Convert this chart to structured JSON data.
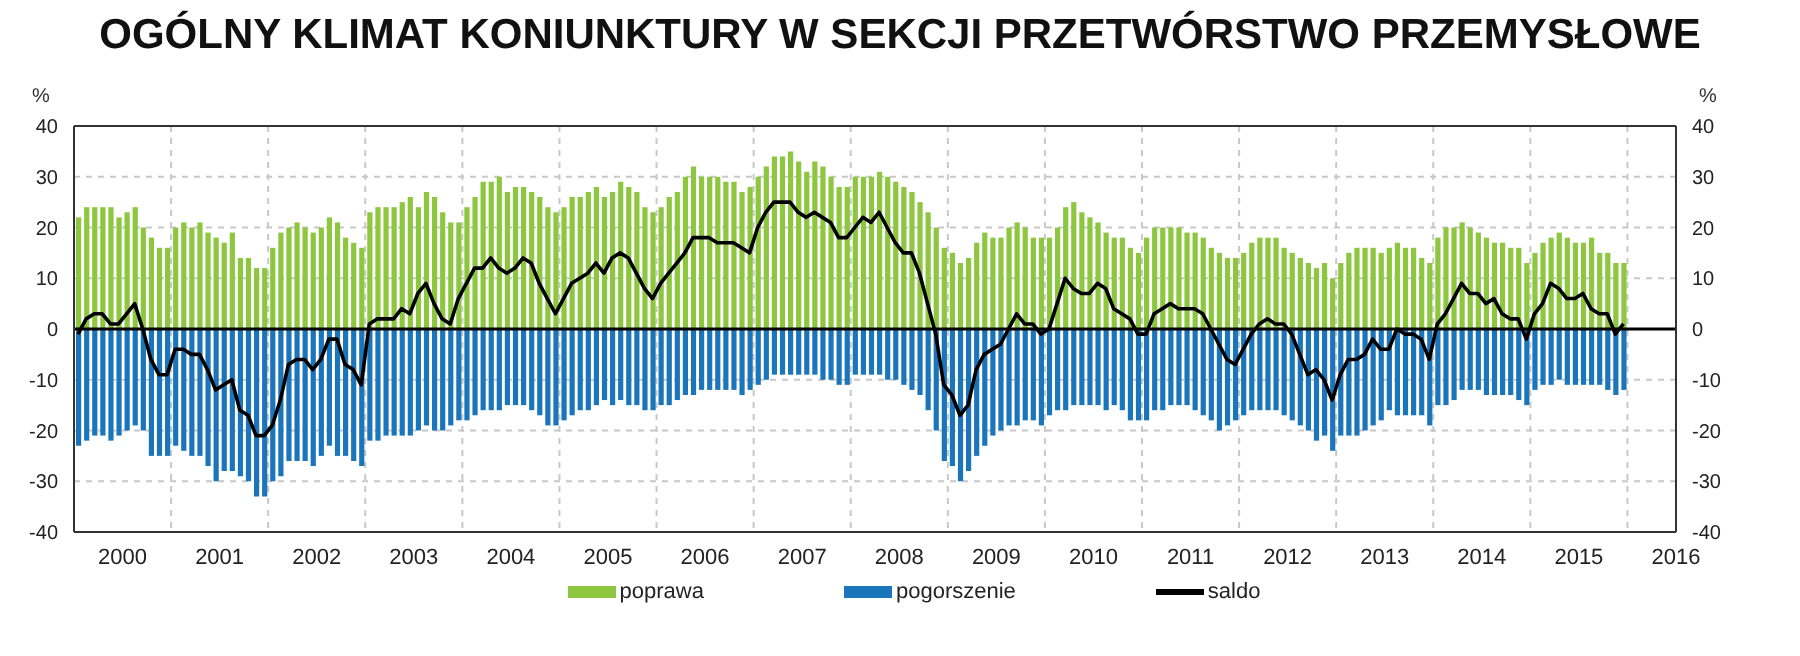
{
  "chart_data": {
    "type": "bar",
    "title": "OGÓLNY KLIMAT KONIUNKTURY W SEKCJI PRZETWÓRSTWO PRZEMYSŁOWE",
    "ylabel": "%",
    "y2label": "%",
    "x": [
      "2000-01",
      "2000-02",
      "2000-03",
      "2000-04",
      "2000-05",
      "2000-06",
      "2000-07",
      "2000-08",
      "2000-09",
      "2000-10",
      "2000-11",
      "2000-12",
      "2001-01",
      "2001-02",
      "2001-03",
      "2001-04",
      "2001-05",
      "2001-06",
      "2001-07",
      "2001-08",
      "2001-09",
      "2001-10",
      "2001-11",
      "2001-12",
      "2002-01",
      "2002-02",
      "2002-03",
      "2002-04",
      "2002-05",
      "2002-06",
      "2002-07",
      "2002-08",
      "2002-09",
      "2002-10",
      "2002-11",
      "2002-12",
      "2003-01",
      "2003-02",
      "2003-03",
      "2003-04",
      "2003-05",
      "2003-06",
      "2003-07",
      "2003-08",
      "2003-09",
      "2003-10",
      "2003-11",
      "2003-12",
      "2004-01",
      "2004-02",
      "2004-03",
      "2004-04",
      "2004-05",
      "2004-06",
      "2004-07",
      "2004-08",
      "2004-09",
      "2004-10",
      "2004-11",
      "2004-12",
      "2005-01",
      "2005-02",
      "2005-03",
      "2005-04",
      "2005-05",
      "2005-06",
      "2005-07",
      "2005-08",
      "2005-09",
      "2005-10",
      "2005-11",
      "2005-12",
      "2006-01",
      "2006-02",
      "2006-03",
      "2006-04",
      "2006-05",
      "2006-06",
      "2006-07",
      "2006-08",
      "2006-09",
      "2006-10",
      "2006-11",
      "2006-12",
      "2007-01",
      "2007-02",
      "2007-03",
      "2007-04",
      "2007-05",
      "2007-06",
      "2007-07",
      "2007-08",
      "2007-09",
      "2007-10",
      "2007-11",
      "2007-12",
      "2008-01",
      "2008-02",
      "2008-03",
      "2008-04",
      "2008-05",
      "2008-06",
      "2008-07",
      "2008-08",
      "2008-09",
      "2008-10",
      "2008-11",
      "2008-12",
      "2009-01",
      "2009-02",
      "2009-03",
      "2009-04",
      "2009-05",
      "2009-06",
      "2009-07",
      "2009-08",
      "2009-09",
      "2009-10",
      "2009-11",
      "2009-12",
      "2010-01",
      "2010-02",
      "2010-03",
      "2010-04",
      "2010-05",
      "2010-06",
      "2010-07",
      "2010-08",
      "2010-09",
      "2010-10",
      "2010-11",
      "2010-12",
      "2011-01",
      "2011-02",
      "2011-03",
      "2011-04",
      "2011-05",
      "2011-06",
      "2011-07",
      "2011-08",
      "2011-09",
      "2011-10",
      "2011-11",
      "2011-12",
      "2012-01",
      "2012-02",
      "2012-03",
      "2012-04",
      "2012-05",
      "2012-06",
      "2012-07",
      "2012-08",
      "2012-09",
      "2012-10",
      "2012-11",
      "2012-12",
      "2013-01",
      "2013-02",
      "2013-03",
      "2013-04",
      "2013-05",
      "2013-06",
      "2013-07",
      "2013-08",
      "2013-09",
      "2013-10",
      "2013-11",
      "2013-12",
      "2014-01",
      "2014-02",
      "2014-03",
      "2014-04",
      "2014-05",
      "2014-06",
      "2014-07",
      "2014-08",
      "2014-09",
      "2014-10",
      "2014-11",
      "2014-12",
      "2015-01",
      "2015-02",
      "2015-03",
      "2015-04",
      "2015-05",
      "2015-06",
      "2015-07",
      "2015-08",
      "2015-09",
      "2015-10",
      "2015-11",
      "2015-12"
    ],
    "series": [
      {
        "name": "poprawa",
        "color": "#8dc63f",
        "values": [
          22,
          24,
          24,
          24,
          24,
          22,
          23,
          24,
          20,
          18,
          16,
          16,
          20,
          21,
          20,
          21,
          19,
          18,
          17,
          19,
          14,
          14,
          12,
          12,
          16,
          19,
          20,
          21,
          20,
          19,
          20,
          22,
          21,
          18,
          17,
          16,
          23,
          24,
          24,
          24,
          25,
          26,
          24,
          27,
          26,
          23,
          21,
          21,
          24,
          26,
          29,
          29,
          30,
          27,
          28,
          28,
          27,
          26,
          24,
          23,
          24,
          26,
          26,
          27,
          28,
          26,
          27,
          29,
          28,
          27,
          24,
          23,
          24,
          26,
          27,
          30,
          32,
          30,
          30,
          30,
          29,
          29,
          27,
          28,
          30,
          32,
          34,
          34,
          35,
          33,
          31,
          33,
          32,
          30,
          28,
          28,
          30,
          30,
          30,
          31,
          30,
          29,
          28,
          27,
          25,
          23,
          20,
          16,
          15,
          13,
          14,
          17,
          19,
          18,
          18,
          20,
          21,
          20,
          18,
          18,
          18,
          20,
          24,
          25,
          23,
          22,
          21,
          19,
          18,
          18,
          16,
          15,
          18,
          20,
          20,
          20,
          20,
          19,
          19,
          18,
          16,
          15,
          14,
          14,
          15,
          17,
          18,
          18,
          18,
          16,
          15,
          14,
          13,
          12,
          13,
          10,
          13,
          15,
          16,
          16,
          16,
          15,
          16,
          17,
          16,
          16,
          14,
          13,
          18,
          20,
          20,
          21,
          20,
          19,
          18,
          17,
          17,
          16,
          16,
          13,
          15,
          17,
          18,
          19,
          18,
          17,
          17,
          18,
          15,
          15,
          13,
          13
        ]
      },
      {
        "name": "pogorszenie",
        "color": "#1b75bb",
        "values": [
          -23,
          -22,
          -21,
          -21,
          -22,
          -21,
          -20,
          -19,
          -20,
          -25,
          -25,
          -25,
          -23,
          -24,
          -25,
          -25,
          -27,
          -30,
          -28,
          -28,
          -29,
          -30,
          -33,
          -33,
          -30,
          -29,
          -26,
          -26,
          -26,
          -27,
          -25,
          -23,
          -25,
          -25,
          -26,
          -27,
          -22,
          -22,
          -21,
          -21,
          -21,
          -21,
          -20,
          -19,
          -20,
          -20,
          -19,
          -18,
          -18,
          -17,
          -16,
          -16,
          -16,
          -15,
          -15,
          -15,
          -16,
          -17,
          -19,
          -19,
          -18,
          -17,
          -16,
          -16,
          -15,
          -14,
          -15,
          -14,
          -15,
          -15,
          -16,
          -16,
          -15,
          -15,
          -14,
          -13,
          -13,
          -12,
          -12,
          -12,
          -12,
          -12,
          -13,
          -12,
          -11,
          -10,
          -9,
          -9,
          -9,
          -9,
          -9,
          -9,
          -10,
          -10,
          -11,
          -11,
          -9,
          -9,
          -9,
          -9,
          -10,
          -10,
          -11,
          -12,
          -13,
          -16,
          -20,
          -26,
          -27,
          -30,
          -28,
          -25,
          -23,
          -21,
          -20,
          -19,
          -19,
          -18,
          -18,
          -19,
          -17,
          -16,
          -16,
          -15,
          -15,
          -15,
          -15,
          -16,
          -15,
          -16,
          -18,
          -18,
          -18,
          -16,
          -16,
          -15,
          -15,
          -15,
          -16,
          -17,
          -18,
          -20,
          -19,
          -18,
          -17,
          -16,
          -16,
          -16,
          -16,
          -17,
          -18,
          -19,
          -20,
          -22,
          -21,
          -24,
          -21,
          -21,
          -21,
          -20,
          -19,
          -18,
          -16,
          -17,
          -17,
          -17,
          -17,
          -19,
          -15,
          -15,
          -14,
          -12,
          -12,
          -12,
          -13,
          -13,
          -13,
          -13,
          -14,
          -15,
          -12,
          -11,
          -11,
          -10,
          -11,
          -11,
          -11,
          -11,
          -11,
          -12,
          -13,
          -12
        ]
      },
      {
        "name": "saldo",
        "type": "line",
        "color": "#000000",
        "values": [
          -1,
          2,
          3,
          3,
          1,
          1,
          3,
          5,
          0,
          -6,
          -9,
          -9,
          -4,
          -4,
          -5,
          -5,
          -8,
          -12,
          -11,
          -10,
          -16,
          -17,
          -21,
          -21,
          -19,
          -14,
          -7,
          -6,
          -6,
          -8,
          -6,
          -2,
          -2,
          -7,
          -8,
          -11,
          1,
          2,
          2,
          2,
          4,
          3,
          7,
          9,
          5,
          2,
          1,
          6,
          9,
          12,
          12,
          14,
          12,
          11,
          12,
          14,
          13,
          9,
          6,
          3,
          6,
          9,
          10,
          11,
          13,
          11,
          14,
          15,
          14,
          11,
          8,
          6,
          9,
          11,
          13,
          15,
          18,
          18,
          18,
          17,
          17,
          17,
          16,
          15,
          20,
          23,
          25,
          25,
          25,
          23,
          22,
          23,
          22,
          21,
          18,
          18,
          20,
          22,
          21,
          23,
          20,
          17,
          15,
          15,
          11,
          5,
          -1,
          -11,
          -13,
          -17,
          -15,
          -8,
          -5,
          -4,
          -3,
          0,
          3,
          1,
          1,
          -1,
          0,
          5,
          10,
          8,
          7,
          7,
          9,
          8,
          4,
          3,
          2,
          -1,
          -1,
          3,
          4,
          5,
          4,
          4,
          4,
          3,
          0,
          -3,
          -6,
          -7,
          -4,
          -1,
          1,
          2,
          1,
          1,
          -1,
          -5,
          -9,
          -8,
          -10,
          -14,
          -9,
          -6,
          -6,
          -5,
          -2,
          -4,
          -4,
          0,
          -1,
          -1,
          -2,
          -6,
          1,
          3,
          6,
          9,
          7,
          7,
          5,
          6,
          3,
          2,
          2,
          -2,
          3,
          5,
          9,
          8,
          6,
          6,
          7,
          4,
          3,
          3,
          -1,
          1
        ]
      }
    ],
    "xlim": [
      "2000-01-01",
      "2016-07-01"
    ],
    "xticks": [
      {
        "value": "2000-07-01",
        "label": "2000"
      },
      {
        "value": "2001-01-01",
        "label": null
      },
      {
        "value": "2001-07-01",
        "label": "2001"
      },
      {
        "value": "2002-01-01",
        "label": null
      },
      {
        "value": "2002-07-01",
        "label": "2002"
      },
      {
        "value": "2003-01-01",
        "label": null
      },
      {
        "value": "2003-07-01",
        "label": "2003"
      },
      {
        "value": "2004-01-01",
        "label": null
      },
      {
        "value": "2004-07-01",
        "label": "2004"
      },
      {
        "value": "2005-01-01",
        "label": null
      },
      {
        "value": "2005-07-01",
        "label": "2005"
      },
      {
        "value": "2006-01-01",
        "label": null
      },
      {
        "value": "2006-07-01",
        "label": "2006"
      },
      {
        "value": "2007-01-01",
        "label": null
      },
      {
        "value": "2007-07-01",
        "label": "2007"
      },
      {
        "value": "2008-01-01",
        "label": null
      },
      {
        "value": "2008-07-01",
        "label": "2008"
      },
      {
        "value": "2009-01-01",
        "label": null
      },
      {
        "value": "2009-07-01",
        "label": "2009"
      },
      {
        "value": "2010-01-01",
        "label": null
      },
      {
        "value": "2010-07-01",
        "label": "2010"
      },
      {
        "value": "2011-01-01",
        "label": null
      },
      {
        "value": "2011-07-01",
        "label": "2011"
      },
      {
        "value": "2012-01-01",
        "label": null
      },
      {
        "value": "2012-07-01",
        "label": "2012"
      },
      {
        "value": "2013-01-01",
        "label": null
      },
      {
        "value": "2013-07-01",
        "label": "2013"
      },
      {
        "value": "2014-01-01",
        "label": null
      },
      {
        "value": "2014-07-01",
        "label": "2014"
      },
      {
        "value": "2015-01-01",
        "label": null
      },
      {
        "value": "2015-07-01",
        "label": "2015"
      },
      {
        "value": "2016-01-01",
        "label": null
      },
      {
        "value": "2016-07-01",
        "label": "2016"
      }
    ],
    "ylim": [
      -40,
      40
    ],
    "yticks": [
      -40,
      -30,
      -20,
      -10,
      0,
      10,
      20,
      30,
      40
    ],
    "y2lim": [
      -40,
      40
    ],
    "y2ticks": [
      -40,
      -30,
      -20,
      -10,
      0,
      10,
      20,
      30,
      40
    ],
    "ref_lines": [
      {
        "axis": "y",
        "value": 0,
        "color": "#000000"
      }
    ],
    "stacked": true,
    "grid": true,
    "legend": "bottom",
    "marker": "none"
  }
}
